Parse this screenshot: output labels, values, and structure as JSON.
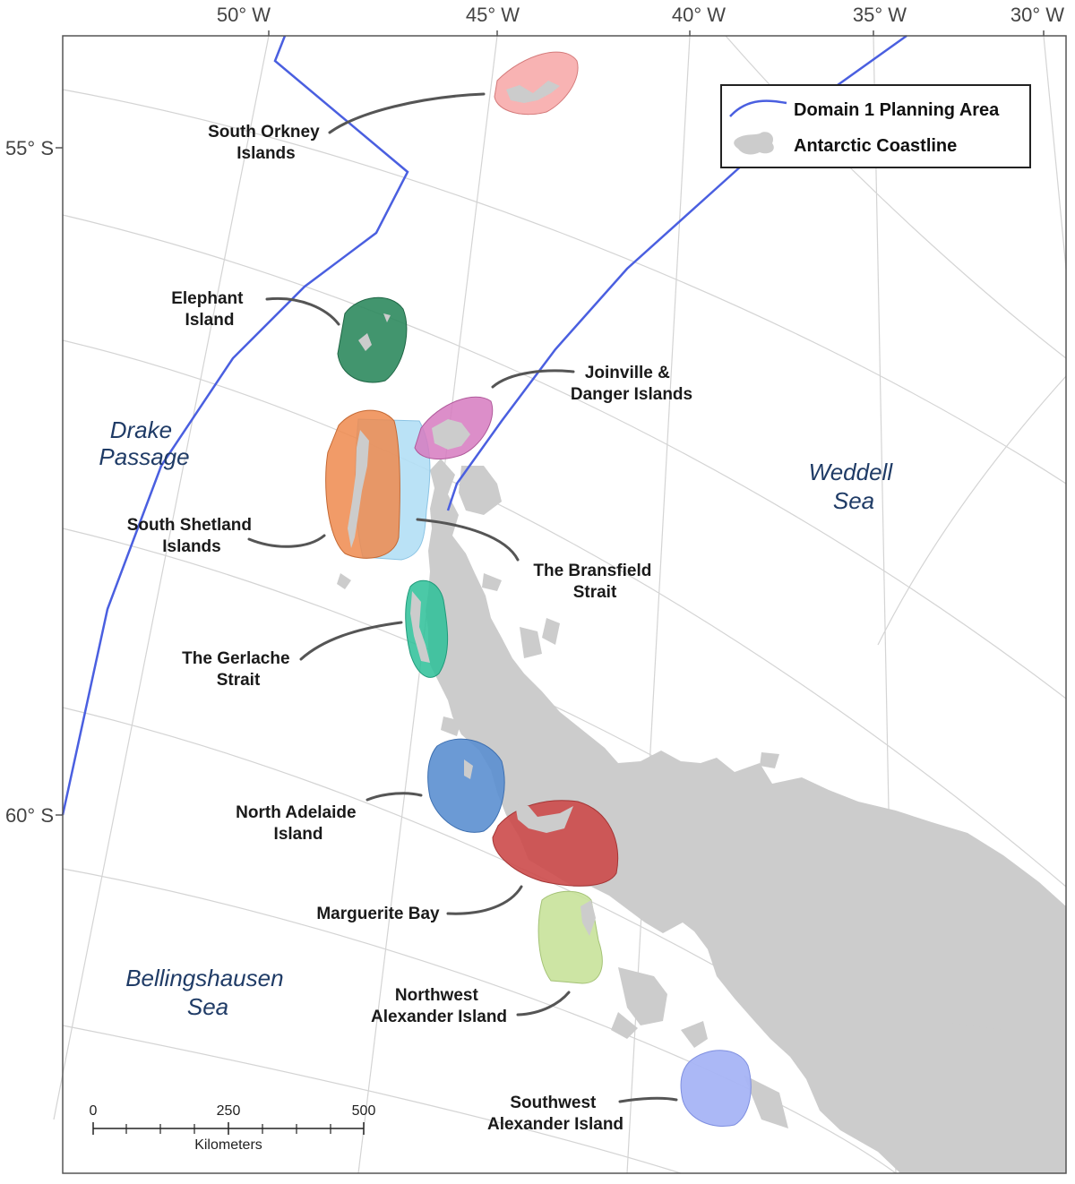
{
  "longitude_labels": [
    "50° W",
    "45° W",
    "40° W",
    "35° W",
    "30° W"
  ],
  "latitude_labels": [
    "55° S",
    "60° S"
  ],
  "regions": [
    {
      "lines": [
        "South Orkney",
        "Islands"
      ],
      "color": "#f7a6a6"
    },
    {
      "lines": [
        "Elephant",
        "Island"
      ],
      "color": "#2e8a5e"
    },
    {
      "lines": [
        "Joinville &",
        "Danger Islands"
      ],
      "color": "#d67ac0"
    },
    {
      "lines": [
        "South Shetland",
        "Islands"
      ],
      "color": "#ee8a4e"
    },
    {
      "lines": [
        "The Bransfield",
        "Strait"
      ],
      "color": "#b3dff5"
    },
    {
      "lines": [
        "The Gerlache",
        "Strait"
      ],
      "color": "#2cbf98"
    },
    {
      "lines": [
        "North Adelaide",
        "Island"
      ],
      "color": "#5b8fd0"
    },
    {
      "lines": [
        "Marguerite Bay"
      ],
      "color": "#cc4a4a"
    },
    {
      "lines": [
        "Northwest",
        "Alexander Island"
      ],
      "color": "#c8e29a"
    },
    {
      "lines": [
        "Southwest",
        "Alexander Island"
      ],
      "color": "#a6b4f5"
    }
  ],
  "seas": [
    {
      "lines": [
        "Drake",
        "Passage"
      ]
    },
    {
      "lines": [
        "Weddell",
        "Sea"
      ]
    },
    {
      "lines": [
        "Bellingshausen",
        "Sea"
      ]
    }
  ],
  "legend": {
    "boundary_label": "Domain 1 Planning Area",
    "boundary_color": "#4a5fe0",
    "coast_label": "Antarctic Coastline",
    "coast_color": "#cccccc"
  },
  "scale_bar": {
    "ticks": [
      "0",
      "250",
      "500"
    ],
    "unit": "Kilometers"
  }
}
